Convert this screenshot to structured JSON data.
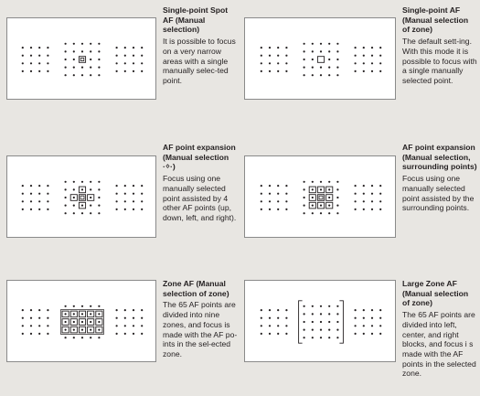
{
  "panels": [
    {
      "id": "single-point-spot-af",
      "title": "Single-point Spot AF (Manual selection)",
      "body": "It is possible to focus on a very narrow areas with a single manually selec-ted point.",
      "mode": "spot"
    },
    {
      "id": "single-point-af",
      "title": "Single-point AF (Manual selection of zone)",
      "body": "The default sett-ing. With this mode it is possible to focus with a single manually selected point.",
      "mode": "single"
    },
    {
      "id": "af-point-expansion-cross",
      "title": "AF point expansion (Manual selection ·ᛜ·)",
      "body": "Focus using one manually selected point assisted by 4 other AF points (up, down, left, and right).",
      "mode": "cross"
    },
    {
      "id": "af-point-expansion-surrounding",
      "title": "AF point expansion (Manual selection, surrounding points)",
      "body": "Focus using one manually selected point assisted by the surrounding points.",
      "mode": "surround"
    },
    {
      "id": "zone-af",
      "title": "Zone AF (Manual selection of zone)",
      "body": "The 65 AF points are divided into nine zones, and focus is made with the AF po-ints in the sel-ected zone.",
      "mode": "zone"
    },
    {
      "id": "large-zone-af",
      "title": "Large Zone AF (Manual selection of zone)",
      "body": "The 65 AF points are divided into left, center, and right blocks, and focus i s made with the AF points in the selected zone.",
      "mode": "large"
    }
  ]
}
